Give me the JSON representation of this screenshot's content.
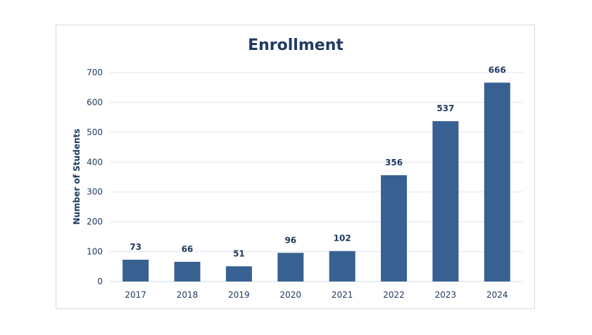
{
  "chart_data": {
    "type": "bar",
    "title": "Enrollment",
    "xlabel": "",
    "ylabel": "Number of Students",
    "categories": [
      "2017",
      "2018",
      "2019",
      "2020",
      "2021",
      "2022",
      "2023",
      "2024"
    ],
    "values": [
      73,
      66,
      51,
      96,
      102,
      356,
      537,
      666
    ],
    "data_labels": [
      "73",
      "66",
      "51",
      "96",
      "102",
      "356",
      "537",
      "666"
    ],
    "ylim": [
      0,
      700
    ],
    "yticks": [
      0,
      100,
      200,
      300,
      400,
      500,
      600,
      700
    ],
    "ytick_labels": [
      "0",
      "100",
      "200",
      "300",
      "400",
      "500",
      "600",
      "700"
    ],
    "grid": true,
    "legend": "none",
    "colors": {
      "bar": "#386192",
      "text": "#1f3b60",
      "grid": "#dbe5ef",
      "frame": "#cfdbe6"
    }
  }
}
